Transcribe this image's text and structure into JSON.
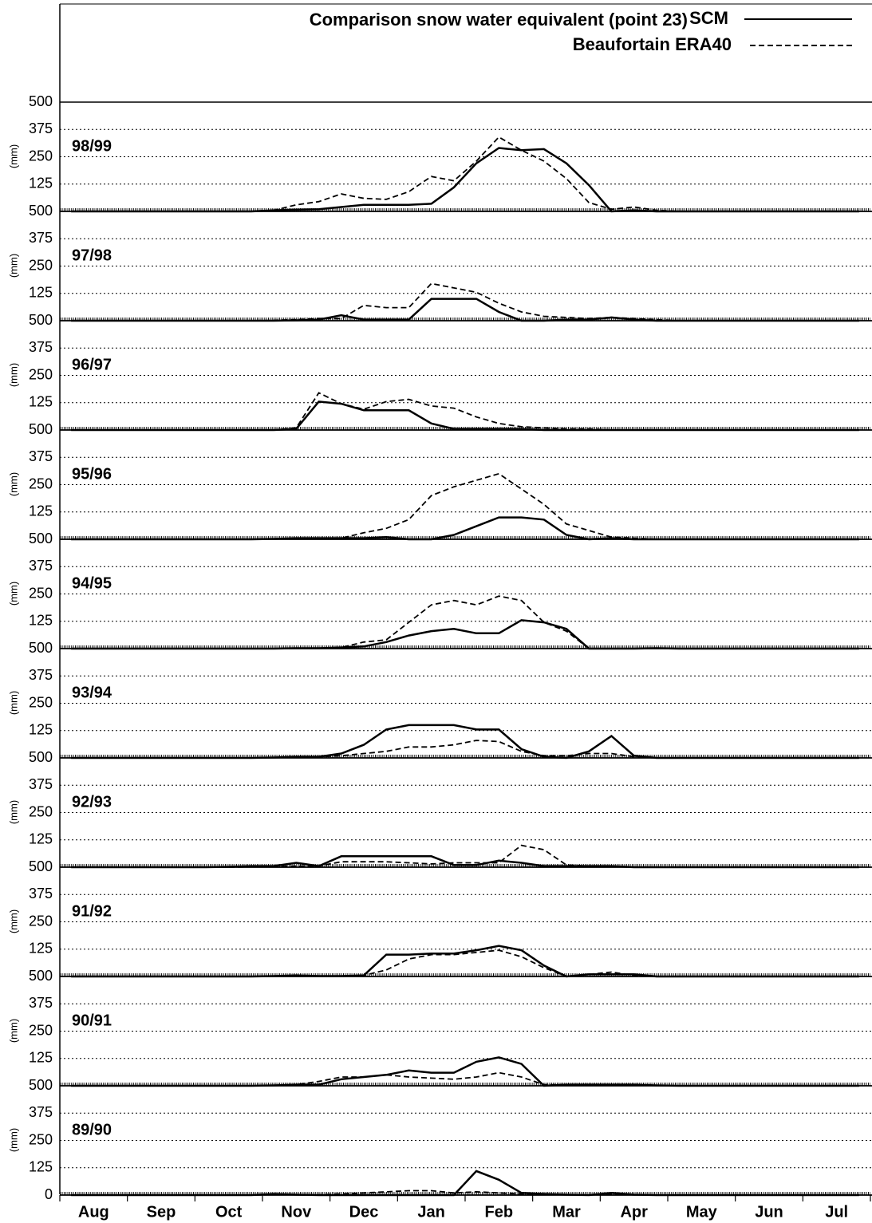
{
  "chart_data": {
    "type": "line",
    "title": "Comparison snow water equivalent (point 23)",
    "ylabel": "(mm)",
    "ylim": [
      0,
      500
    ],
    "grid": true,
    "categories": [
      null,
      "Aug",
      null,
      null,
      "Sep",
      null,
      null,
      "Oct",
      null,
      null,
      "Nov",
      null,
      null,
      "Dec",
      null,
      null,
      "Jan",
      null,
      null,
      "Feb",
      null,
      null,
      "Mar",
      null,
      null,
      "Apr",
      null,
      null,
      "May",
      null,
      null,
      "Jun",
      null,
      null,
      "Jul",
      null
    ],
    "series": [
      {
        "name": "SCM",
        "color": "#000000",
        "dash": "solid"
      },
      {
        "name": "Beaufortain ERA40",
        "color": "#000000",
        "dash": "dashed"
      }
    ],
    "panels": [
      {
        "label": "98/99",
        "yticks": [
          125,
          250,
          375,
          500
        ],
        "series": [
          {
            "values": [
              0,
              0,
              0,
              0,
              0,
              0,
              0,
              0,
              0,
              5,
              8,
              10,
              20,
              30,
              30,
              30,
              35,
              110,
              220,
              290,
              280,
              285,
              220,
              120,
              0,
              5,
              0,
              0,
              0,
              0,
              0,
              0,
              0,
              0,
              0,
              0
            ]
          },
          {
            "values": [
              0,
              0,
              0,
              0,
              0,
              0,
              0,
              0,
              0,
              5,
              30,
              45,
              80,
              60,
              55,
              90,
              160,
              140,
              230,
              340,
              280,
              230,
              150,
              40,
              10,
              20,
              5,
              0,
              0,
              0,
              0,
              0,
              0,
              0,
              0,
              0
            ]
          }
        ]
      },
      {
        "label": "97/98",
        "yticks": [
          125,
          250,
          375,
          500
        ],
        "series": [
          {
            "values": [
              0,
              0,
              0,
              0,
              0,
              0,
              0,
              0,
              0,
              0,
              2,
              5,
              25,
              5,
              5,
              5,
              100,
              100,
              100,
              40,
              0,
              0,
              5,
              5,
              15,
              5,
              0,
              0,
              0,
              0,
              0,
              0,
              0,
              0,
              0,
              0
            ]
          },
          {
            "values": [
              0,
              0,
              0,
              0,
              0,
              0,
              0,
              0,
              0,
              2,
              5,
              10,
              10,
              70,
              60,
              60,
              170,
              150,
              130,
              80,
              40,
              20,
              15,
              10,
              15,
              10,
              5,
              0,
              0,
              0,
              0,
              0,
              0,
              0,
              0,
              0
            ]
          }
        ]
      },
      {
        "label": "96/97",
        "yticks": [
          125,
          250,
          375,
          500
        ],
        "series": [
          {
            "values": [
              0,
              0,
              0,
              0,
              0,
              0,
              0,
              0,
              0,
              0,
              5,
              130,
              120,
              90,
              90,
              90,
              30,
              5,
              5,
              5,
              5,
              0,
              0,
              0,
              0,
              0,
              0,
              0,
              0,
              0,
              0,
              0,
              0,
              0,
              0,
              0
            ]
          },
          {
            "values": [
              0,
              0,
              0,
              0,
              0,
              0,
              0,
              0,
              0,
              0,
              10,
              170,
              120,
              95,
              130,
              140,
              110,
              100,
              60,
              30,
              15,
              10,
              5,
              5,
              0,
              0,
              0,
              0,
              0,
              0,
              0,
              0,
              0,
              0,
              0,
              0
            ]
          }
        ]
      },
      {
        "label": "95/96",
        "yticks": [
          125,
          250,
          375,
          500
        ],
        "series": [
          {
            "values": [
              0,
              0,
              0,
              0,
              0,
              0,
              0,
              0,
              0,
              2,
              5,
              5,
              5,
              5,
              10,
              0,
              0,
              20,
              60,
              100,
              100,
              90,
              20,
              0,
              5,
              0,
              0,
              0,
              0,
              0,
              0,
              0,
              0,
              0,
              0,
              0
            ]
          },
          {
            "values": [
              0,
              0,
              0,
              0,
              0,
              0,
              0,
              0,
              0,
              2,
              5,
              5,
              5,
              30,
              50,
              90,
              200,
              240,
              270,
              300,
              230,
              160,
              70,
              40,
              10,
              5,
              0,
              0,
              0,
              0,
              0,
              0,
              0,
              0,
              0,
              0
            ]
          }
        ]
      },
      {
        "label": "94/95",
        "yticks": [
          125,
          250,
          375,
          500
        ],
        "series": [
          {
            "values": [
              0,
              0,
              0,
              0,
              0,
              0,
              0,
              0,
              0,
              0,
              2,
              2,
              5,
              10,
              30,
              60,
              80,
              90,
              70,
              70,
              130,
              120,
              90,
              0,
              0,
              0,
              2,
              0,
              0,
              0,
              0,
              0,
              0,
              0,
              0,
              0
            ]
          },
          {
            "values": [
              0,
              0,
              0,
              0,
              0,
              0,
              0,
              0,
              0,
              0,
              2,
              2,
              5,
              30,
              40,
              120,
              200,
              220,
              200,
              240,
              220,
              120,
              80,
              0,
              0,
              0,
              2,
              0,
              0,
              0,
              0,
              0,
              0,
              0,
              0,
              0
            ]
          }
        ]
      },
      {
        "label": "93/94",
        "yticks": [
          125,
          250,
          375,
          500
        ],
        "series": [
          {
            "values": [
              0,
              0,
              0,
              0,
              0,
              0,
              0,
              0,
              0,
              2,
              5,
              5,
              20,
              60,
              130,
              150,
              150,
              150,
              130,
              130,
              40,
              5,
              0,
              30,
              100,
              10,
              0,
              0,
              0,
              0,
              0,
              0,
              0,
              0,
              0,
              0
            ]
          },
          {
            "values": [
              0,
              0,
              0,
              0,
              0,
              0,
              0,
              0,
              0,
              2,
              5,
              5,
              10,
              20,
              30,
              50,
              50,
              60,
              80,
              75,
              30,
              10,
              10,
              20,
              20,
              5,
              0,
              0,
              0,
              0,
              0,
              0,
              0,
              0,
              0,
              0
            ]
          }
        ]
      },
      {
        "label": "92/93",
        "yticks": [
          125,
          250,
          375,
          500
        ],
        "series": [
          {
            "values": [
              0,
              0,
              0,
              0,
              0,
              0,
              0,
              2,
              5,
              5,
              20,
              5,
              50,
              50,
              50,
              50,
              50,
              10,
              10,
              30,
              20,
              5,
              5,
              5,
              5,
              0,
              0,
              0,
              0,
              0,
              0,
              0,
              0,
              0,
              0,
              0
            ]
          },
          {
            "values": [
              0,
              0,
              0,
              0,
              0,
              0,
              0,
              0,
              2,
              2,
              5,
              5,
              25,
              25,
              25,
              20,
              15,
              20,
              20,
              20,
              100,
              80,
              10,
              5,
              5,
              0,
              0,
              0,
              0,
              0,
              0,
              0,
              0,
              0,
              0,
              0
            ]
          }
        ]
      },
      {
        "label": "91/92",
        "yticks": [
          125,
          250,
          375,
          500
        ],
        "series": [
          {
            "values": [
              0,
              0,
              0,
              0,
              0,
              0,
              0,
              0,
              0,
              2,
              5,
              2,
              2,
              5,
              100,
              100,
              105,
              105,
              120,
              140,
              120,
              50,
              0,
              10,
              10,
              10,
              0,
              0,
              0,
              0,
              0,
              0,
              0,
              0,
              0,
              0
            ]
          },
          {
            "values": [
              0,
              0,
              0,
              0,
              0,
              0,
              0,
              0,
              0,
              2,
              2,
              2,
              2,
              5,
              30,
              80,
              100,
              100,
              110,
              120,
              90,
              40,
              0,
              10,
              20,
              5,
              0,
              0,
              0,
              0,
              0,
              0,
              0,
              0,
              0,
              0
            ]
          }
        ]
      },
      {
        "label": "90/91",
        "yticks": [
          125,
          250,
          375,
          500
        ],
        "series": [
          {
            "values": [
              0,
              0,
              0,
              0,
              0,
              0,
              0,
              0,
              0,
              2,
              5,
              5,
              30,
              40,
              50,
              70,
              60,
              60,
              110,
              130,
              100,
              0,
              5,
              5,
              5,
              5,
              2,
              0,
              0,
              0,
              0,
              0,
              0,
              0,
              0,
              0
            ]
          },
          {
            "values": [
              0,
              0,
              0,
              0,
              0,
              0,
              0,
              0,
              0,
              2,
              5,
              20,
              40,
              40,
              50,
              40,
              35,
              30,
              40,
              60,
              40,
              5,
              5,
              5,
              5,
              5,
              2,
              0,
              0,
              0,
              0,
              0,
              0,
              0,
              0,
              0
            ]
          }
        ]
      },
      {
        "label": "89/90",
        "yticks": [
          0,
          125,
          250,
          375,
          500
        ],
        "series": [
          {
            "values": [
              0,
              0,
              0,
              0,
              0,
              0,
              0,
              0,
              0,
              5,
              2,
              0,
              0,
              0,
              0,
              0,
              0,
              0,
              110,
              70,
              10,
              5,
              2,
              0,
              10,
              2,
              0,
              0,
              0,
              0,
              0,
              0,
              0,
              0,
              0,
              0
            ]
          },
          {
            "values": [
              0,
              0,
              0,
              0,
              0,
              0,
              0,
              0,
              0,
              2,
              2,
              2,
              5,
              10,
              15,
              20,
              20,
              10,
              15,
              10,
              5,
              5,
              2,
              2,
              5,
              2,
              0,
              0,
              0,
              0,
              0,
              0,
              0,
              0,
              0,
              0
            ]
          }
        ]
      }
    ]
  }
}
